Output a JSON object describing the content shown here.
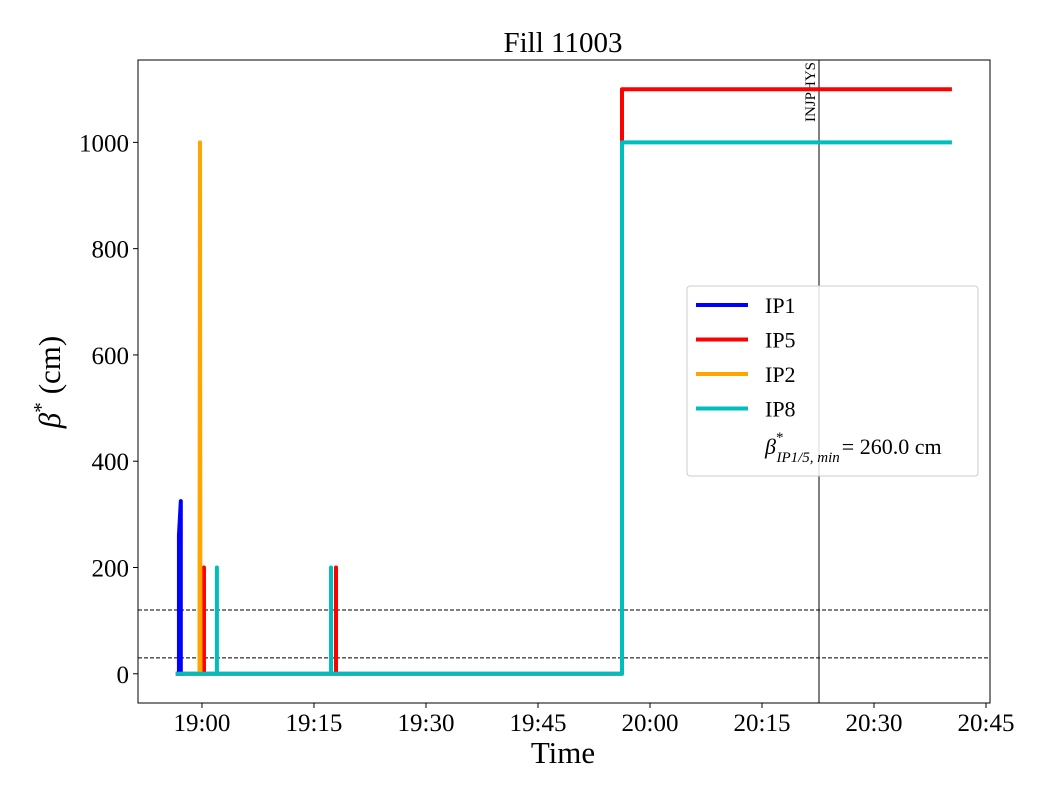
{
  "chart_data": {
    "type": "line",
    "title": "Fill 11003",
    "x_label": "Time",
    "y_label": {
      "symbol": "β",
      "sup": "*",
      "unit": "(cm)"
    },
    "xlim": [
      "18:51:26",
      "20:45:32"
    ],
    "xticks": [
      "19:00",
      "19:15",
      "19:30",
      "19:45",
      "20:00",
      "20:15",
      "20:30",
      "20:45"
    ],
    "ylim": [
      -55,
      1155
    ],
    "yticks": [
      0,
      200,
      400,
      600,
      800,
      1000
    ],
    "series": [
      {
        "name": "IP1",
        "color": "#0000ff",
        "x": [
          "18:56:30",
          "18:56:55",
          "18:56:55",
          "18:57:10",
          "18:57:10",
          "18:57:30"
        ],
        "values": [
          0,
          0,
          260,
          325,
          0,
          0
        ]
      },
      {
        "name": "IP5",
        "color": "#ff0000",
        "x": [
          "18:56:30",
          "19:00:16",
          "19:00:16",
          "19:00:16",
          "19:17:57",
          "19:17:57",
          "19:17:57",
          "19:56:15",
          "19:56:15",
          "20:40:26"
        ],
        "values": [
          0,
          0,
          200,
          0,
          0,
          200,
          0,
          0,
          1100,
          1100
        ]
      },
      {
        "name": "IP2",
        "color": "#ffa500",
        "x": [
          "18:59:40",
          "18:59:44",
          "18:59:48",
          "19:00:10"
        ],
        "values": [
          0,
          1000,
          0,
          0
        ]
      },
      {
        "name": "IP8",
        "color": "#00bebe",
        "x": [
          "18:56:30",
          "19:02:00",
          "19:02:00",
          "19:02:00",
          "19:17:17",
          "19:17:17",
          "19:17:17",
          "19:56:15",
          "19:56:15",
          "20:40:26"
        ],
        "values": [
          0,
          0,
          200,
          0,
          0,
          200,
          0,
          0,
          1000,
          1000
        ]
      }
    ],
    "hlines": [
      30,
      120
    ],
    "vline": {
      "x": "20:22:38",
      "label": "INJPHYS"
    },
    "legend_note": {
      "symbol": "β",
      "sup": "*",
      "sub": "IP1/5, min",
      "text": "= 260.0 cm"
    }
  }
}
